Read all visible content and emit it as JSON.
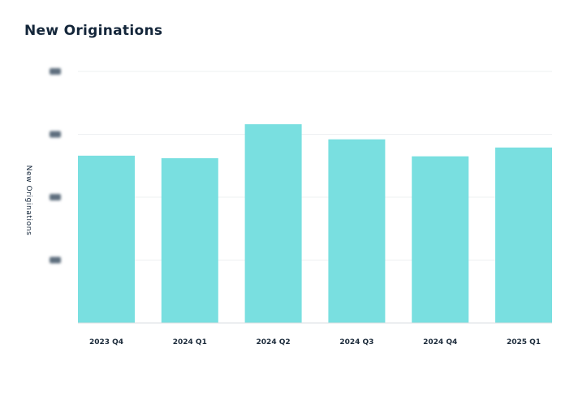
{
  "chart_data": {
    "type": "bar",
    "title": "New Originations",
    "xlabel": "",
    "ylabel": "New Originations",
    "categories": [
      "2023 Q4",
      "2024 Q1",
      "2024 Q2",
      "2024 Q3",
      "2024 Q4",
      "2025 Q1"
    ],
    "values": [
      2.66,
      2.62,
      3.16,
      2.92,
      2.65,
      2.79
    ],
    "ylim": [
      0,
      4
    ],
    "yticks": [
      1,
      2,
      3,
      4
    ],
    "ytick_labels_obscured": true,
    "grid": true,
    "legend": "none",
    "bar_color": "#79dfe0",
    "gridline_color": "#eef0f2",
    "text_color": "#14263a"
  }
}
